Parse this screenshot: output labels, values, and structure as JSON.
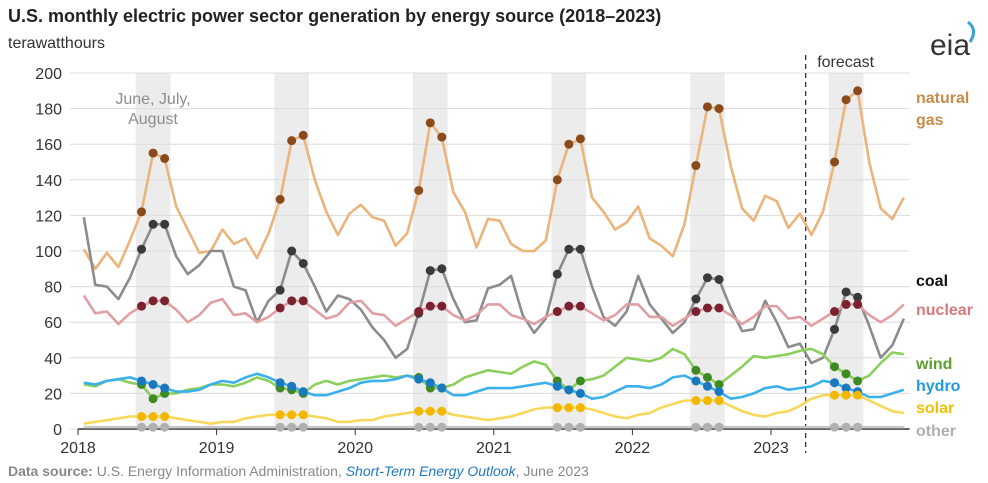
{
  "chart_data": {
    "type": "line",
    "title": "U.S. monthly electric power sector generation by energy source (2018–2023)",
    "y_label": "terawatthours",
    "logo": "eia",
    "annotation": "June, July, August",
    "forecast_label": "forecast",
    "source_label": "Data source:",
    "source_text": " U.S. Energy Information Administration, ",
    "source_link": "Short-Term Energy Outlook",
    "source_date": ", June 2023",
    "categories": [
      "2018",
      null,
      null,
      null,
      null,
      null,
      null,
      null,
      null,
      null,
      null,
      null,
      "2019",
      null,
      null,
      null,
      null,
      null,
      null,
      null,
      null,
      null,
      null,
      null,
      "2020",
      null,
      null,
      null,
      null,
      null,
      null,
      null,
      null,
      null,
      null,
      null,
      "2021",
      null,
      null,
      null,
      null,
      null,
      null,
      null,
      null,
      null,
      null,
      null,
      "2022",
      null,
      null,
      null,
      null,
      null,
      null,
      null,
      null,
      null,
      null,
      null,
      "2023",
      null,
      null,
      null,
      null,
      null,
      null,
      null,
      null,
      null,
      null,
      null
    ],
    "ylim": [
      0,
      200
    ],
    "yticks": [
      0,
      20,
      40,
      60,
      80,
      100,
      120,
      140,
      160,
      180,
      200
    ],
    "grid": true,
    "series": [
      {
        "name": "natural gas",
        "color": "#ebb47c",
        "marker_color": "#8a4a1c",
        "label_color": "#c98a4b",
        "values": [
          101,
          90,
          99,
          91,
          106,
          122,
          155,
          152,
          125,
          112,
          99,
          100,
          112,
          104,
          107,
          96,
          110,
          129,
          162,
          165,
          140,
          122,
          109,
          121,
          126,
          119,
          117,
          103,
          110,
          134,
          172,
          164,
          133,
          122,
          102,
          118,
          117,
          104,
          100,
          100,
          106,
          140,
          160,
          163,
          130,
          122,
          112,
          116,
          125,
          107,
          103,
          97,
          115,
          148,
          181,
          180,
          148,
          124,
          117,
          131,
          128,
          113,
          121,
          109,
          122,
          150,
          185,
          190,
          150,
          124,
          118,
          130
        ]
      },
      {
        "name": "coal",
        "color": "#8c8c8c",
        "marker_color": "#3a3a3a",
        "label_color": "#111111",
        "values": [
          119,
          81,
          80,
          73,
          85,
          101,
          115,
          115,
          97,
          87,
          92,
          100,
          100,
          80,
          78,
          60,
          72,
          78,
          100,
          93,
          80,
          66,
          75,
          73,
          67,
          57,
          50,
          40,
          45,
          65,
          89,
          90,
          73,
          60,
          61,
          79,
          81,
          86,
          64,
          54,
          62,
          87,
          101,
          101,
          80,
          63,
          58,
          66,
          86,
          70,
          62,
          54,
          60,
          73,
          85,
          84,
          68,
          55,
          56,
          72,
          60,
          46,
          48,
          37,
          40,
          56,
          77,
          74,
          58,
          40,
          47,
          62
        ]
      },
      {
        "name": "nuclear",
        "color": "#e0a0a3",
        "marker_color": "#7a2230",
        "label_color": "#d47a80",
        "values": [
          75,
          65,
          66,
          59,
          65,
          69,
          72,
          72,
          67,
          60,
          64,
          71,
          73,
          64,
          65,
          60,
          63,
          68,
          72,
          72,
          67,
          62,
          64,
          71,
          72,
          65,
          64,
          58,
          62,
          66,
          69,
          69,
          64,
          61,
          64,
          70,
          70,
          64,
          62,
          59,
          63,
          66,
          69,
          69,
          65,
          61,
          64,
          70,
          70,
          63,
          63,
          58,
          62,
          66,
          68,
          68,
          64,
          59,
          63,
          69,
          69,
          62,
          63,
          58,
          62,
          66,
          70,
          70,
          64,
          60,
          64,
          70
        ]
      },
      {
        "name": "wind",
        "color": "#8ccf5c",
        "marker_color": "#3f8a22",
        "label_color": "#5aa02c",
        "values": [
          25,
          24,
          27,
          28,
          26,
          25,
          17,
          20,
          20,
          22,
          23,
          25,
          25,
          24,
          26,
          29,
          27,
          23,
          22,
          20,
          25,
          27,
          25,
          27,
          28,
          29,
          30,
          29,
          30,
          29,
          23,
          23,
          25,
          29,
          31,
          33,
          32,
          31,
          35,
          38,
          36,
          27,
          22,
          27,
          28,
          30,
          35,
          40,
          39,
          38,
          40,
          45,
          42,
          33,
          29,
          25,
          30,
          35,
          41,
          40,
          41,
          42,
          44,
          45,
          42,
          35,
          31,
          27,
          30,
          37,
          43,
          42
        ]
      },
      {
        "name": "hydro",
        "color": "#3cb0ec",
        "marker_color": "#1a78bd",
        "label_color": "#1e9be0",
        "values": [
          26,
          25,
          27,
          28,
          29,
          27,
          25,
          23,
          21,
          21,
          22,
          25,
          27,
          26,
          29,
          31,
          29,
          26,
          24,
          21,
          19,
          19,
          21,
          23,
          26,
          27,
          27,
          28,
          30,
          28,
          26,
          23,
          19,
          19,
          21,
          23,
          23,
          23,
          24,
          25,
          26,
          24,
          22,
          20,
          17,
          18,
          21,
          24,
          24,
          23,
          25,
          29,
          30,
          27,
          24,
          21,
          17,
          18,
          20,
          23,
          24,
          22,
          23,
          24,
          27,
          26,
          23,
          21,
          18,
          18,
          20,
          22
        ]
      },
      {
        "name": "solar",
        "color": "#f8d85a",
        "marker_color": "#f2b800",
        "label_color": "#f0c000",
        "values": [
          3,
          4,
          5,
          6,
          7,
          7,
          7,
          7,
          6,
          5,
          4,
          3,
          4,
          4,
          6,
          7,
          8,
          8,
          8,
          8,
          7,
          6,
          4,
          4,
          5,
          5,
          7,
          8,
          9,
          10,
          10,
          10,
          8,
          7,
          6,
          5,
          6,
          7,
          9,
          11,
          12,
          12,
          12,
          12,
          11,
          9,
          7,
          6,
          8,
          9,
          12,
          14,
          16,
          16,
          16,
          16,
          13,
          10,
          8,
          7,
          9,
          10,
          13,
          17,
          19,
          19,
          19,
          19,
          16,
          13,
          10,
          9
        ]
      },
      {
        "name": "other",
        "color": "#c8c8c8",
        "marker_color": "#b0b0b0",
        "label_color": "#b0b0b0",
        "values": [
          1,
          1,
          1,
          1,
          1,
          1,
          1,
          1,
          1,
          1,
          1,
          1,
          1,
          1,
          1,
          1,
          1,
          1,
          1,
          1,
          1,
          1,
          1,
          1,
          1,
          1,
          1,
          1,
          1,
          1,
          1,
          1,
          1,
          1,
          1,
          1,
          1,
          1,
          1,
          1,
          1,
          1,
          1,
          1,
          1,
          1,
          1,
          1,
          1,
          1,
          1,
          1,
          1,
          1,
          1,
          1,
          1,
          1,
          1,
          1,
          1,
          1,
          1,
          1,
          1,
          1,
          1,
          1,
          1,
          1,
          1,
          1
        ]
      }
    ]
  }
}
